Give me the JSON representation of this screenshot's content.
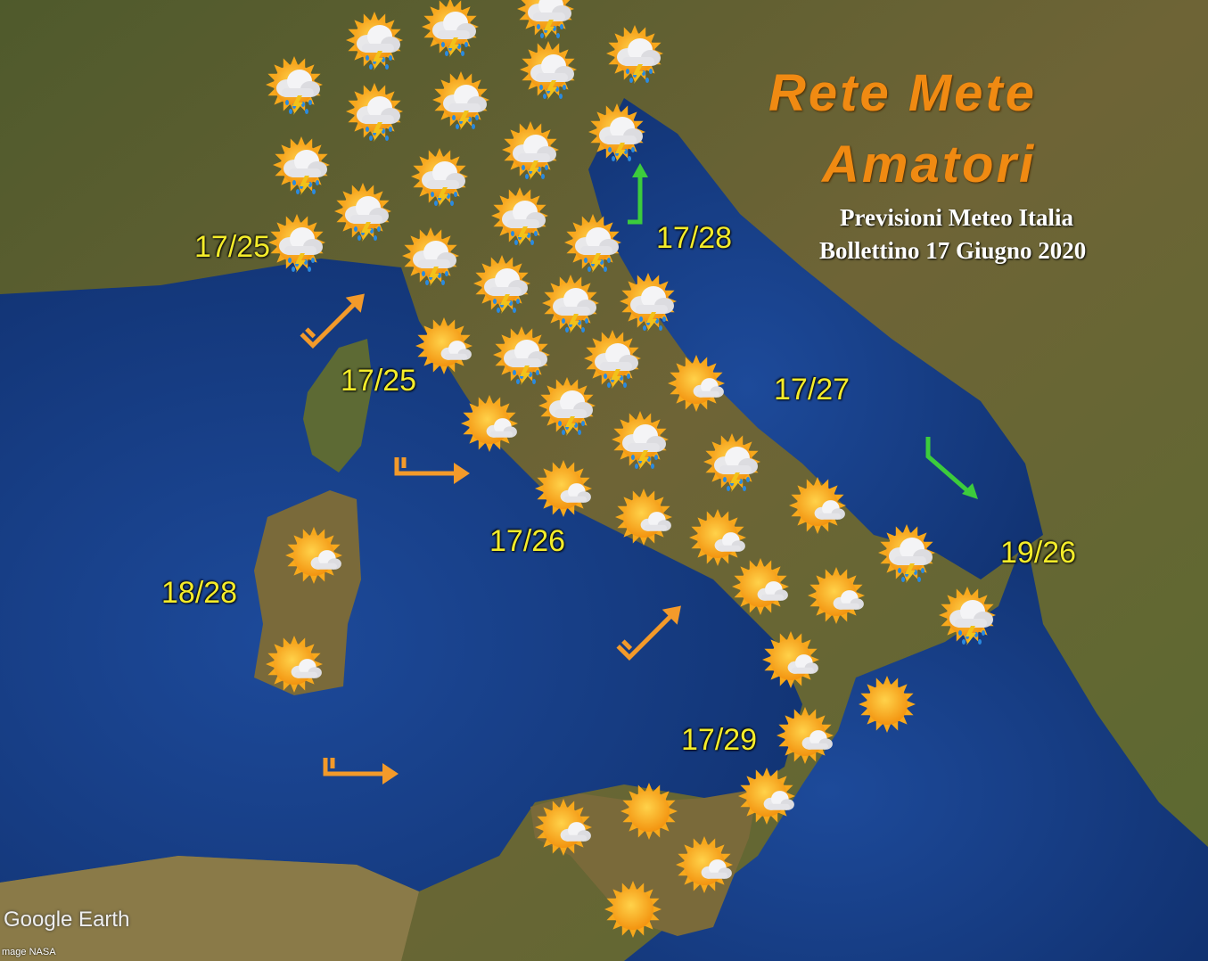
{
  "logo": {
    "line1": "Rete Mete",
    "line2": "Amatori"
  },
  "header": {
    "title": "Previsioni Meteo Italia",
    "subtitle": "Bollettino 17 Giugno 2020"
  },
  "attribution": {
    "brand": "Google Earth",
    "imagery": "mage NASA"
  },
  "colors": {
    "sea": "#1a3f86",
    "land": "#6b6235",
    "sun": "#f7a81b",
    "temp_text": "#f4ec2a",
    "logo": "#f08a12",
    "wind_arrow": "#f39a2a",
    "sea_arrow": "#3ccc3c"
  },
  "temperatures": [
    "17/25",
    "17/28",
    "17/25",
    "17/27",
    "17/26",
    "18/28",
    "19/26",
    "17/29"
  ],
  "weather_icons": [
    "sun-cloud-storm",
    "sun-cloud-storm",
    "sun-cloud-storm",
    "sun-cloud-storm",
    "sun-cloud-storm",
    "sun-cloud-storm",
    "sun-cloud-storm",
    "sun-cloud-storm",
    "sun-cloud-storm",
    "sun-cloud-storm",
    "sun-cloud-storm",
    "sun-cloud-storm",
    "sun-cloud-storm",
    "sun-cloud-storm",
    "sun-cloud-storm",
    "sun-cloud-storm",
    "sun-cloud-storm",
    "sun-cloud-storm",
    "sun-cloud-storm",
    "sun-cloud-storm",
    "sun-cloud",
    "sun-cloud-storm",
    "sun-cloud-storm",
    "sun-cloud",
    "sun-cloud-storm",
    "sun-cloud",
    "sun-cloud-storm",
    "sun-cloud-storm",
    "sun-cloud",
    "sun-cloud",
    "sun-cloud",
    "sun-cloud-storm",
    "sun-cloud",
    "sun-cloud",
    "sun-cloud",
    "sun-cloud",
    "sun-cloud-storm",
    "sun-cloud",
    "sun-cloud",
    "sun",
    "sun-cloud",
    "sun-cloud",
    "sun-cloud",
    "sun",
    "sun-cloud",
    "sun"
  ],
  "wind_arrows": [
    "wind-northeast",
    "wind-east",
    "wind-east",
    "wind-northeast"
  ],
  "sea_arrows": [
    "sea-north",
    "sea-southeast"
  ]
}
